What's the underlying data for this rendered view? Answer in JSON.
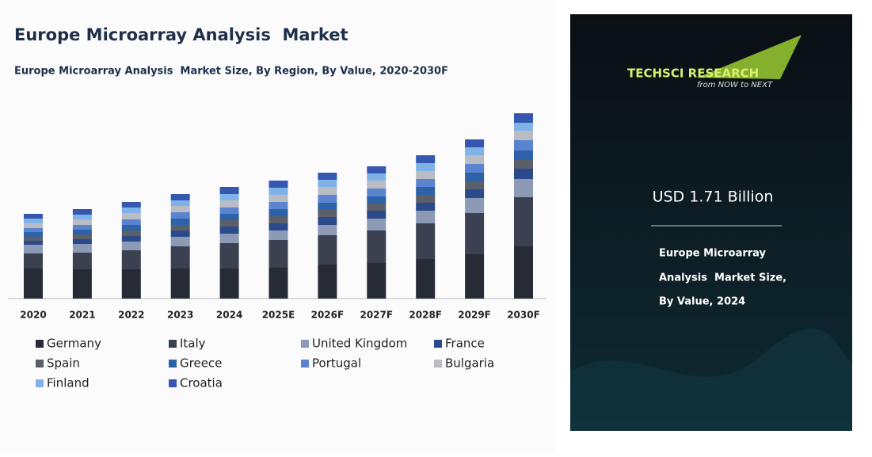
{
  "chart_data": {
    "type": "stacked_bar",
    "title": "Europe Microarray Analysis  Market",
    "subtitle": "Europe Microarray Analysis  Market Size, By Region, By Value, 2020-2030F",
    "categories": [
      "2020",
      "2021",
      "2022",
      "2023",
      "2024",
      "2025E",
      "2026F",
      "2027F",
      "2028F",
      "2029F",
      "2030F"
    ],
    "ylim": [
      0,
      250
    ],
    "series": [
      {
        "name": "Germany",
        "color": "#262b36",
        "values": [
          38,
          37,
          37,
          38,
          38,
          39,
          43,
          45,
          50,
          56,
          66
        ]
      },
      {
        "name": "Italy",
        "color": "#3b4150",
        "values": [
          19,
          21,
          24,
          28,
          32,
          35,
          37,
          41,
          45,
          52,
          62
        ]
      },
      {
        "name": "United Kingdom",
        "color": "#8d9ab5",
        "values": [
          11,
          11,
          11,
          12,
          12,
          12,
          13,
          15,
          16,
          19,
          23
        ]
      },
      {
        "name": "France",
        "color": "#2a4a8c",
        "values": [
          5,
          6,
          7,
          8,
          9,
          9,
          10,
          10,
          10,
          11,
          13
        ]
      },
      {
        "name": "Spain",
        "color": "#5a5f6a",
        "values": [
          5,
          6,
          7,
          7,
          8,
          9,
          9,
          9,
          10,
          10,
          11
        ]
      },
      {
        "name": "Greece",
        "color": "#2e62a8",
        "values": [
          6,
          6,
          7,
          8,
          8,
          9,
          9,
          9,
          10,
          11,
          12
        ]
      },
      {
        "name": "Portugal",
        "color": "#5b84d0",
        "values": [
          5,
          6,
          7,
          8,
          8,
          9,
          10,
          10,
          10,
          11,
          13
        ]
      },
      {
        "name": "Bulgaria",
        "color": "#b9bcc2",
        "values": [
          6,
          7,
          8,
          8,
          9,
          9,
          10,
          10,
          10,
          11,
          12
        ]
      },
      {
        "name": "Finland",
        "color": "#7fb3e8",
        "values": [
          6,
          6,
          7,
          7,
          8,
          9,
          9,
          9,
          10,
          10,
          10
        ]
      },
      {
        "name": "Croatia",
        "color": "#3557b0",
        "values": [
          6,
          7,
          7,
          8,
          9,
          9,
          9,
          9,
          10,
          10,
          12
        ]
      }
    ]
  },
  "panel": {
    "brand": "TECHSCI RESEARCH",
    "tagline": "from NOW to NEXT",
    "headline": "USD 1.71 Billion",
    "caption": [
      "Europe Microarray",
      "Analysis  Market Size,",
      "By Value, 2024"
    ]
  }
}
